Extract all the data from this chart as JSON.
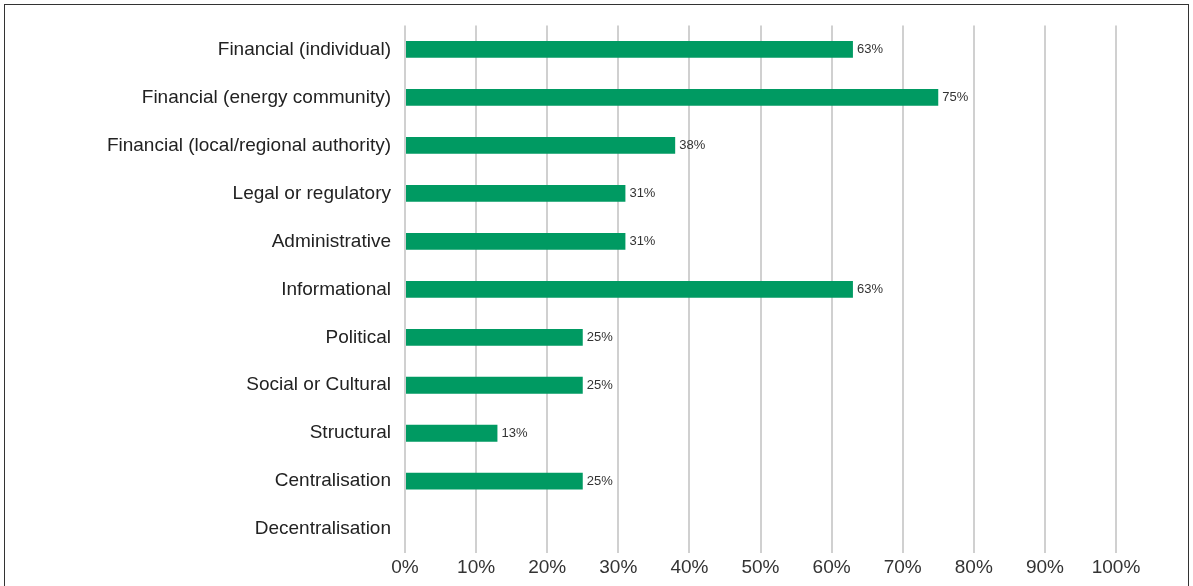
{
  "chart_data": {
    "type": "bar",
    "orientation": "horizontal",
    "categories": [
      "Financial (individual)",
      "Financial (energy community)",
      "Financial (local/regional authority)",
      "Legal or regulatory",
      "Administrative",
      "Informational",
      "Political",
      "Social or Cultural",
      "Structural",
      "Centralisation",
      "Decentralisation"
    ],
    "values": [
      63,
      75,
      38,
      31,
      31,
      63,
      25,
      25,
      13,
      25,
      0
    ],
    "value_labels": [
      "63%",
      "75%",
      "38%",
      "31%",
      "31%",
      "63%",
      "25%",
      "25%",
      "13%",
      "25%",
      null
    ],
    "color": "#009a62",
    "xlim": [
      0,
      100
    ],
    "xticks": [
      {
        "value": 0,
        "label": "0%"
      },
      {
        "value": 10,
        "label": "10%"
      },
      {
        "value": 20,
        "label": "20%"
      },
      {
        "value": 30,
        "label": "30%"
      },
      {
        "value": 40,
        "label": "40%"
      },
      {
        "value": 50,
        "label": "50%"
      },
      {
        "value": 60,
        "label": "60%"
      },
      {
        "value": 70,
        "label": "70%"
      },
      {
        "value": 80,
        "label": "80%"
      },
      {
        "value": 90,
        "label": "90%"
      },
      {
        "value": 100,
        "label": "100%"
      }
    ],
    "grid": "x"
  }
}
